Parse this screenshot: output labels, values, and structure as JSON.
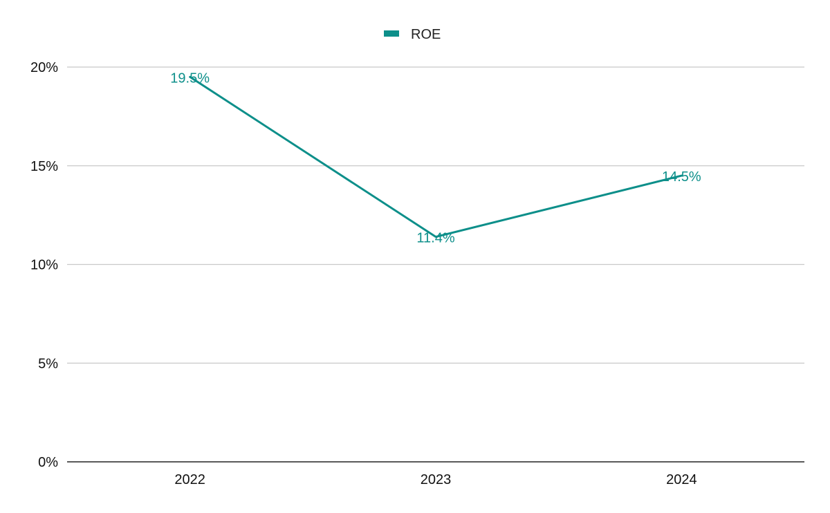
{
  "chart_data": {
    "type": "line",
    "categories": [
      "2022",
      "2023",
      "2024"
    ],
    "series": [
      {
        "name": "ROE",
        "values": [
          19.5,
          11.4,
          14.5
        ],
        "data_labels": [
          "19.5%",
          "11.4%",
          "14.5%"
        ]
      }
    ],
    "ylim": [
      0,
      20
    ],
    "y_ticks": [
      0,
      5,
      10,
      15,
      20
    ],
    "y_tick_labels": [
      "0%",
      "5%",
      "10%",
      "15%",
      "20%"
    ],
    "grid": true,
    "legend_position": "top-center",
    "colors": {
      "series": "#0d8f8a",
      "grid": "#c8c8c8",
      "axis": "#222222"
    }
  }
}
